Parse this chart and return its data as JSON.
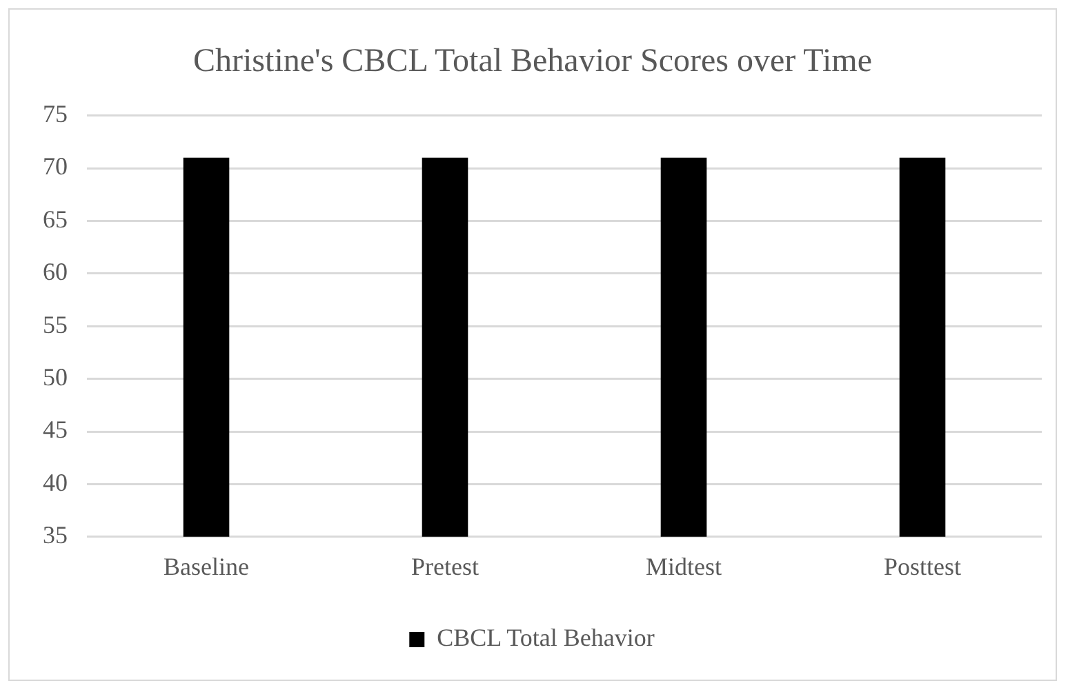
{
  "chart_data": {
    "type": "bar",
    "title": "Christine's CBCL Total Behavior Scores over Time",
    "categories": [
      "Baseline",
      "Pretest",
      "Midtest",
      "Posttest"
    ],
    "series": [
      {
        "name": "CBCL Total Behavior",
        "color": "#000000",
        "values": [
          71,
          71,
          71,
          71
        ]
      }
    ],
    "ylim": [
      35,
      75
    ],
    "yticks": [
      35,
      40,
      45,
      50,
      55,
      60,
      65,
      70,
      75
    ],
    "grid": "y",
    "legend": "bottom"
  }
}
